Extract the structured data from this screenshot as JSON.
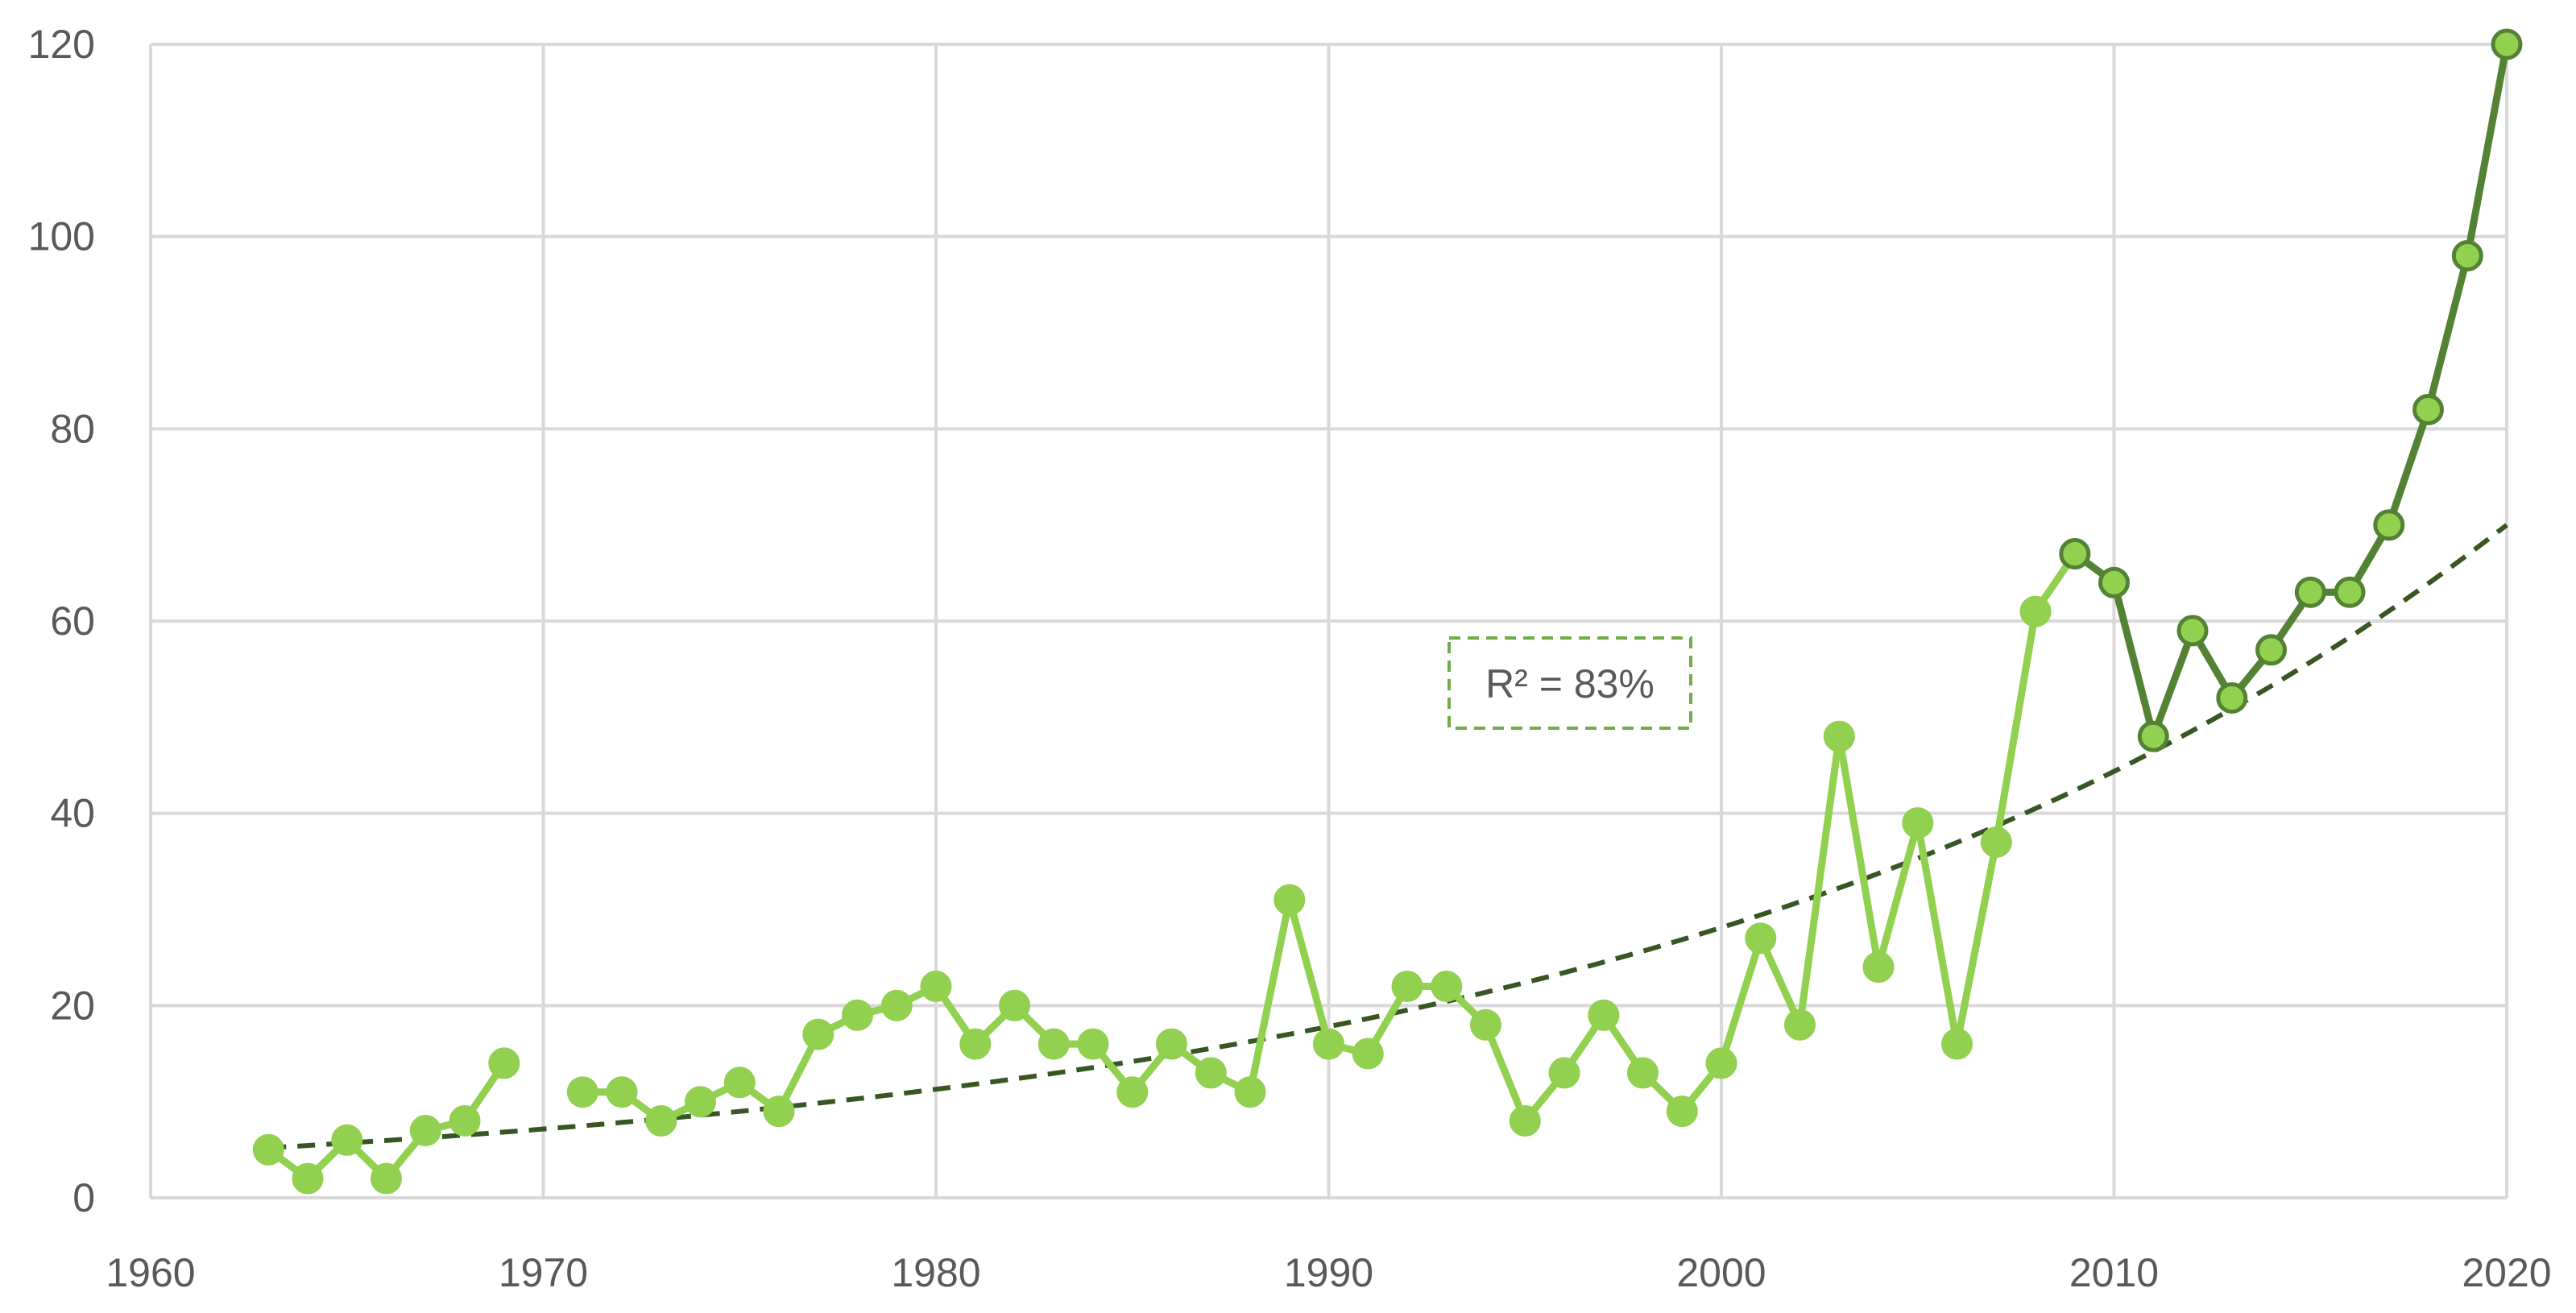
{
  "chart_data": {
    "type": "line",
    "title": "",
    "xlabel": "",
    "ylabel": "",
    "xlim": [
      1960,
      2020
    ],
    "ylim": [
      0,
      120
    ],
    "x_ticks": [
      "1960",
      "1970",
      "1980",
      "1990",
      "2000",
      "2010",
      "2020"
    ],
    "y_ticks": [
      "0",
      "20",
      "40",
      "60",
      "80",
      "100",
      "120"
    ],
    "grid": true,
    "legend": "none",
    "annotation": "R² = 83%",
    "colors": {
      "light_series": "#92d050",
      "dark_series": "#548235",
      "marker_fill": "#92d050",
      "trendline": "#375623",
      "annotation_border": "#70ad47",
      "gridline": "#d9d9d9"
    },
    "series": [
      {
        "segments": [
          [
            [
              1963,
              5
            ],
            [
              1964,
              2
            ],
            [
              1965,
              6
            ],
            [
              1966,
              2
            ],
            [
              1967,
              7
            ],
            [
              1968,
              8
            ],
            [
              1969,
              14
            ]
          ],
          [
            [
              1971,
              11
            ],
            [
              1972,
              11
            ],
            [
              1973,
              8
            ],
            [
              1974,
              10
            ],
            [
              1975,
              12
            ],
            [
              1976,
              9
            ],
            [
              1977,
              17
            ],
            [
              1978,
              19
            ],
            [
              1979,
              20
            ],
            [
              1980,
              22
            ],
            [
              1981,
              16
            ],
            [
              1982,
              20
            ],
            [
              1983,
              16
            ],
            [
              1984,
              16
            ],
            [
              1985,
              11
            ],
            [
              1986,
              16
            ],
            [
              1987,
              13
            ],
            [
              1988,
              11
            ],
            [
              1989,
              31
            ],
            [
              1990,
              16
            ],
            [
              1991,
              15
            ],
            [
              1992,
              22
            ],
            [
              1993,
              22
            ],
            [
              1994,
              18
            ],
            [
              1995,
              8
            ],
            [
              1996,
              13
            ],
            [
              1997,
              19
            ],
            [
              1998,
              13
            ],
            [
              1999,
              9
            ],
            [
              2000,
              14
            ],
            [
              2001,
              27
            ],
            [
              2002,
              18
            ],
            [
              2003,
              48
            ],
            [
              2004,
              24
            ],
            [
              2005,
              39
            ],
            [
              2006,
              16
            ],
            [
              2007,
              37
            ],
            [
              2008,
              61
            ],
            [
              2009,
              67
            ]
          ]
        ]
      },
      {
        "segments": [
          [
            [
              2009,
              67
            ],
            [
              2010,
              64
            ],
            [
              2011,
              48
            ],
            [
              2012,
              59
            ],
            [
              2013,
              52
            ],
            [
              2014,
              57
            ],
            [
              2015,
              63
            ],
            [
              2016,
              63
            ],
            [
              2017,
              70
            ],
            [
              2018,
              82
            ],
            [
              2019,
              98
            ],
            [
              2020,
              120
            ]
          ]
        ]
      }
    ],
    "trendline": {
      "type": "exponential",
      "x_range": [
        1963,
        2020
      ],
      "start_value": 5.2,
      "end_value": 70
    }
  }
}
